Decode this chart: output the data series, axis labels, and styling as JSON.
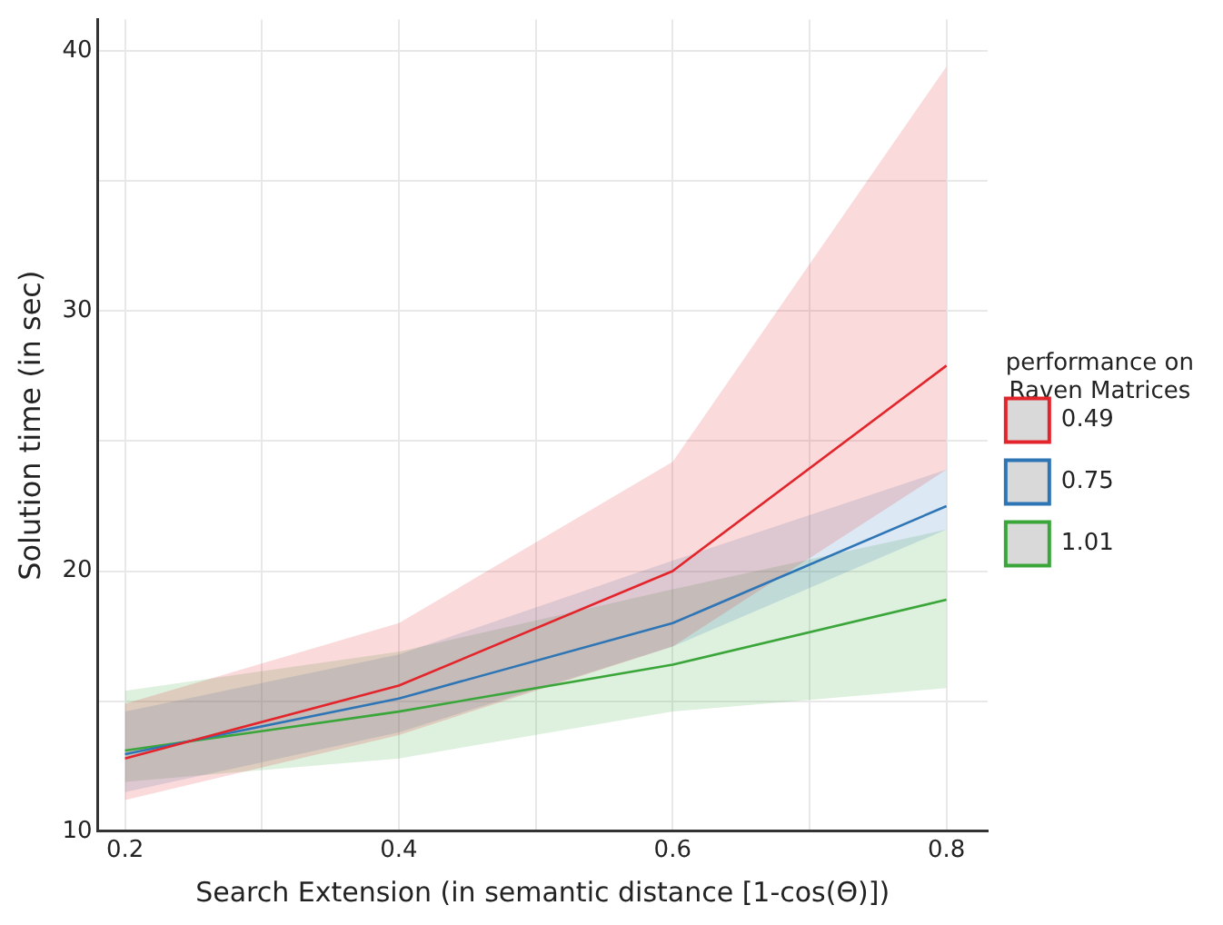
{
  "chart_data": {
    "type": "line",
    "xlabel": "Search Extension (in semantic distance [1-cos(Θ)])",
    "ylabel": "Solution time (in sec)",
    "legend_title": "performance on\nRaven Matrices",
    "legend": "right",
    "grid": true,
    "marker": "none",
    "line_style": "solid",
    "x": [
      0.2,
      0.4,
      0.6,
      0.8
    ],
    "xlim": [
      0.18,
      0.83
    ],
    "xticks": [
      0.2,
      {
        "value": 0.3,
        "label": null
      },
      0.4,
      {
        "value": 0.5,
        "label": null
      },
      0.6,
      {
        "value": 0.7,
        "label": null
      },
      0.8
    ],
    "ylim": [
      10,
      41.2
    ],
    "yticks": [
      10,
      {
        "value": 15,
        "label": null
      },
      20,
      {
        "value": 25,
        "label": null
      },
      30,
      {
        "value": 35,
        "label": null
      },
      40
    ],
    "series": [
      {
        "name": "0.49",
        "color": "#e3242b",
        "values": [
          12.8,
          15.6,
          20.0,
          27.9
        ],
        "lower": [
          11.2,
          13.7,
          17.1,
          23.9
        ],
        "upper": [
          14.9,
          18.0,
          24.2,
          39.4
        ]
      },
      {
        "name": "0.75",
        "color": "#2e75b6",
        "values": [
          12.96,
          15.1,
          18.0,
          22.5
        ],
        "lower": [
          11.5,
          13.8,
          17.1,
          21.6
        ],
        "upper": [
          14.6,
          16.8,
          20.4,
          23.9
        ]
      },
      {
        "name": "1.01",
        "color": "#3aa63a",
        "values": [
          13.1,
          14.6,
          16.4,
          18.9
        ],
        "lower": [
          11.9,
          12.8,
          14.6,
          15.5
        ],
        "upper": [
          15.4,
          16.9,
          19.3,
          21.6
        ]
      }
    ]
  }
}
